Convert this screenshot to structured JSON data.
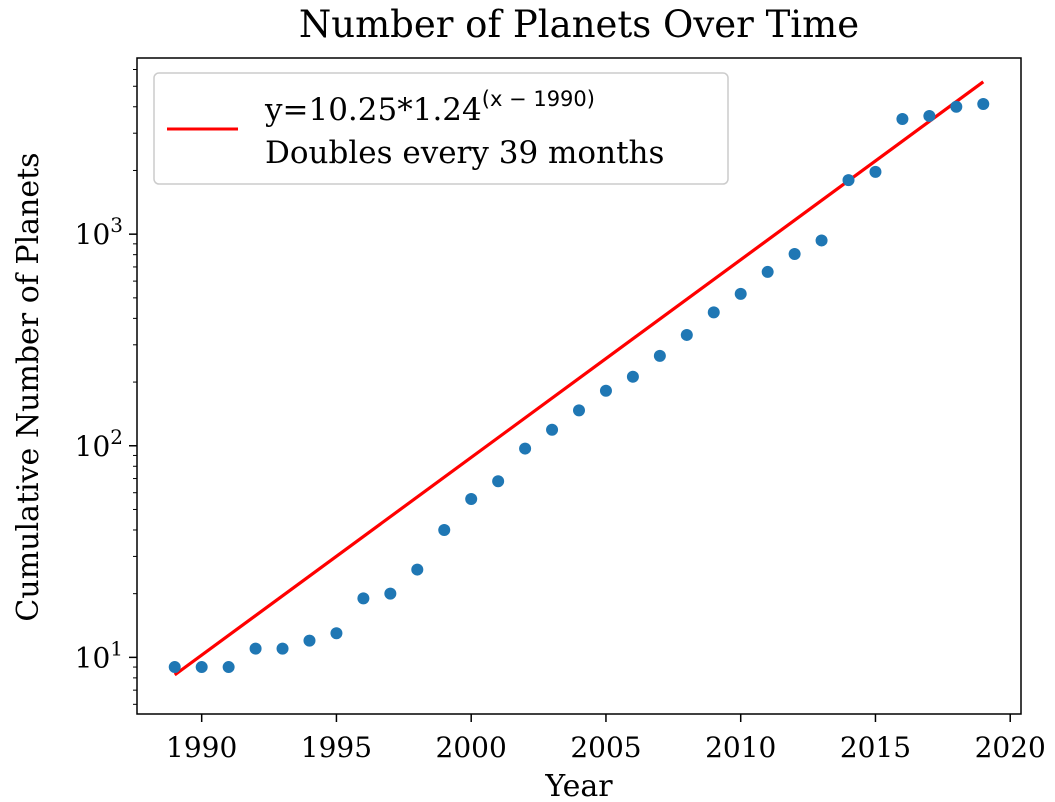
{
  "chart_data": {
    "type": "scatter",
    "title": "Number of Planets Over Time",
    "xlabel": "Year",
    "ylabel": "Cumulative Number of Planets",
    "xlim": [
      1987.6,
      2020.4
    ],
    "ylim": [
      5.4,
      6800
    ],
    "yscale": "log",
    "grid": false,
    "legend_position": "top-left",
    "x_ticks": [
      1990,
      1995,
      2000,
      2005,
      2010,
      2015,
      2020
    ],
    "y_ticks": [
      {
        "value": 10,
        "base": "10",
        "exp": "1"
      },
      {
        "value": 100,
        "base": "10",
        "exp": "2"
      },
      {
        "value": 1000,
        "base": "10",
        "exp": "3"
      }
    ],
    "points": {
      "color": "#1f77b4",
      "x": [
        1989,
        1990,
        1991,
        1992,
        1993,
        1994,
        1995,
        1996,
        1997,
        1998,
        1999,
        2000,
        2001,
        2002,
        2003,
        2004,
        2005,
        2006,
        2007,
        2008,
        2009,
        2010,
        2011,
        2012,
        2013,
        2014,
        2015,
        2016,
        2017,
        2018,
        2019
      ],
      "y": [
        9,
        9,
        9,
        11,
        11,
        12,
        13,
        19,
        20,
        26,
        40,
        56,
        68,
        97,
        119,
        147,
        182,
        212,
        266,
        334,
        427,
        522,
        663,
        806,
        934,
        1800,
        1970,
        3500,
        3620,
        4000,
        4120
      ]
    },
    "fit": {
      "color": "#ff0000",
      "x_start": 1989,
      "x_end": 2019,
      "a": 10.25,
      "b": 1.24,
      "x0": 1990,
      "legend_main": "y=10.25*1.24",
      "legend_exp": "(x − 1990)",
      "legend_line2": "Doubles every 39 months"
    }
  }
}
